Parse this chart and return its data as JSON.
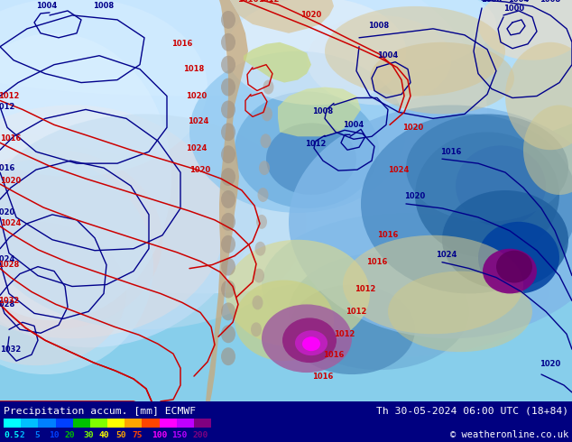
{
  "title_left": "Precipitation accum. [mm] ECMWF",
  "title_right": "Th 30-05-2024 06:00 UTC (18+84)",
  "copyright": "© weatheronline.co.uk",
  "legend_values": [
    "0.5",
    "2",
    "5",
    "10",
    "20",
    "30",
    "40",
    "50",
    "75",
    "100",
    "150",
    "200"
  ],
  "legend_colors": [
    "#00ffff",
    "#00bfff",
    "#0080ff",
    "#0040ff",
    "#00c000",
    "#80ff00",
    "#ffff00",
    "#ffa500",
    "#ff4500",
    "#ff00ff",
    "#bf00ff",
    "#800080"
  ],
  "isobar_blue": "#00008b",
  "isobar_red": "#cc0000",
  "bottom_bg": "#000080",
  "text_color": "#ffffff",
  "map_bg": "#87ceeb",
  "ocean_light": "#b0d8f8",
  "ocean_mid": "#80bce8",
  "ocean_deep": "#50a0d0",
  "land_tan": "#d2b48c",
  "land_green_light": "#c8e6a0",
  "land_green_mid": "#a8d060",
  "land_yellow": "#e8e060",
  "precip_0": "#e8f4ff",
  "precip_1": "#c0e4ff",
  "precip_2": "#90ccff",
  "precip_3": "#60b0ff",
  "precip_4": "#3090ee",
  "precip_5": "#1070cc",
  "precip_6": "#0050aa",
  "precip_7": "#003080",
  "precip_8": "#001860",
  "precip_purple": "#800080",
  "precip_darkpurple": "#400040",
  "pink_light": "#f0c8c8",
  "pink_mid": "#e0a0a0"
}
